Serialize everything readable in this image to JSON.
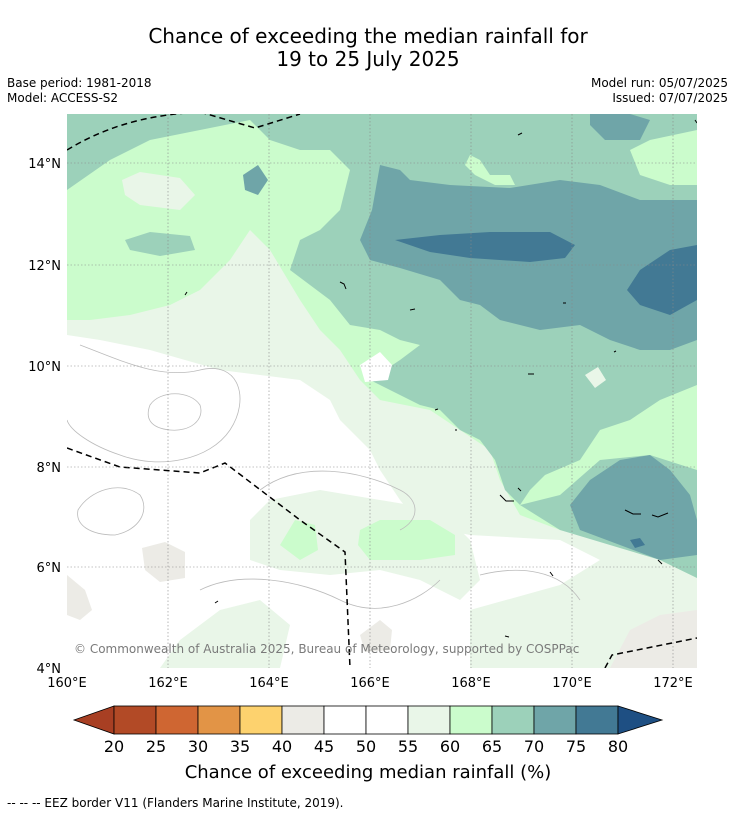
{
  "title_line1": "Chance of exceeding the median rainfall for",
  "title_line2": "19 to 25 July 2025",
  "base_period": "Base period: 1981-2018",
  "model": "Model: ACCESS-S2",
  "model_run": "Model run: 05/07/2025",
  "issued": "Issued: 07/07/2025",
  "lat_labels": [
    "14°N",
    "12°N",
    "10°N",
    "8°N",
    "6°N",
    "4°N"
  ],
  "lon_labels": [
    "160°E",
    "162°E",
    "164°E",
    "166°E",
    "168°E",
    "170°E",
    "172°E"
  ],
  "copyright": "© Commonwealth of Australia 2025, Bureau of Meteorology, supported by COSPPac",
  "colorbar": {
    "title": "Chance of exceeding median rainfall (%)",
    "ticks": [
      "20",
      "25",
      "30",
      "35",
      "40",
      "45",
      "50",
      "55",
      "60",
      "65",
      "70",
      "75",
      "80"
    ],
    "colors": [
      "#a83f23",
      "#b24a26",
      "#cf6632",
      "#e29446",
      "#fdd26e",
      "#ecebe6",
      "#ffffff",
      "#ffffff",
      "#e9f6e8",
      "#cbfccc",
      "#9cd1ba",
      "#6fa5a8",
      "#427994",
      "#1e4f83"
    ]
  },
  "footer": "--  --  -- EEZ border V11 (Flanders Marine Institute, 2019)."
}
